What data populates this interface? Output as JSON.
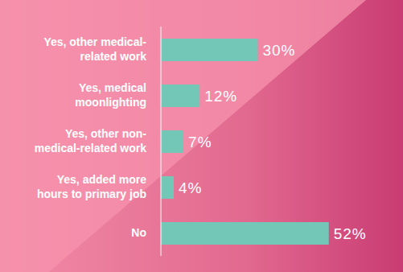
{
  "chart_data": {
    "type": "bar",
    "orientation": "horizontal",
    "categories": [
      "Yes, other medical-related work",
      "Yes, medical moonlighting",
      "Yes, other non-medical-related work",
      "Yes, added more hours to primary job",
      "No"
    ],
    "values": [
      30,
      12,
      7,
      4,
      52
    ],
    "value_labels": [
      "30%",
      "12%",
      "7%",
      "4%",
      "52%"
    ],
    "data_labels": true,
    "color": "#72c7b6",
    "xlim": [
      0,
      70
    ],
    "tick_labels": "y",
    "grid": false
  }
}
